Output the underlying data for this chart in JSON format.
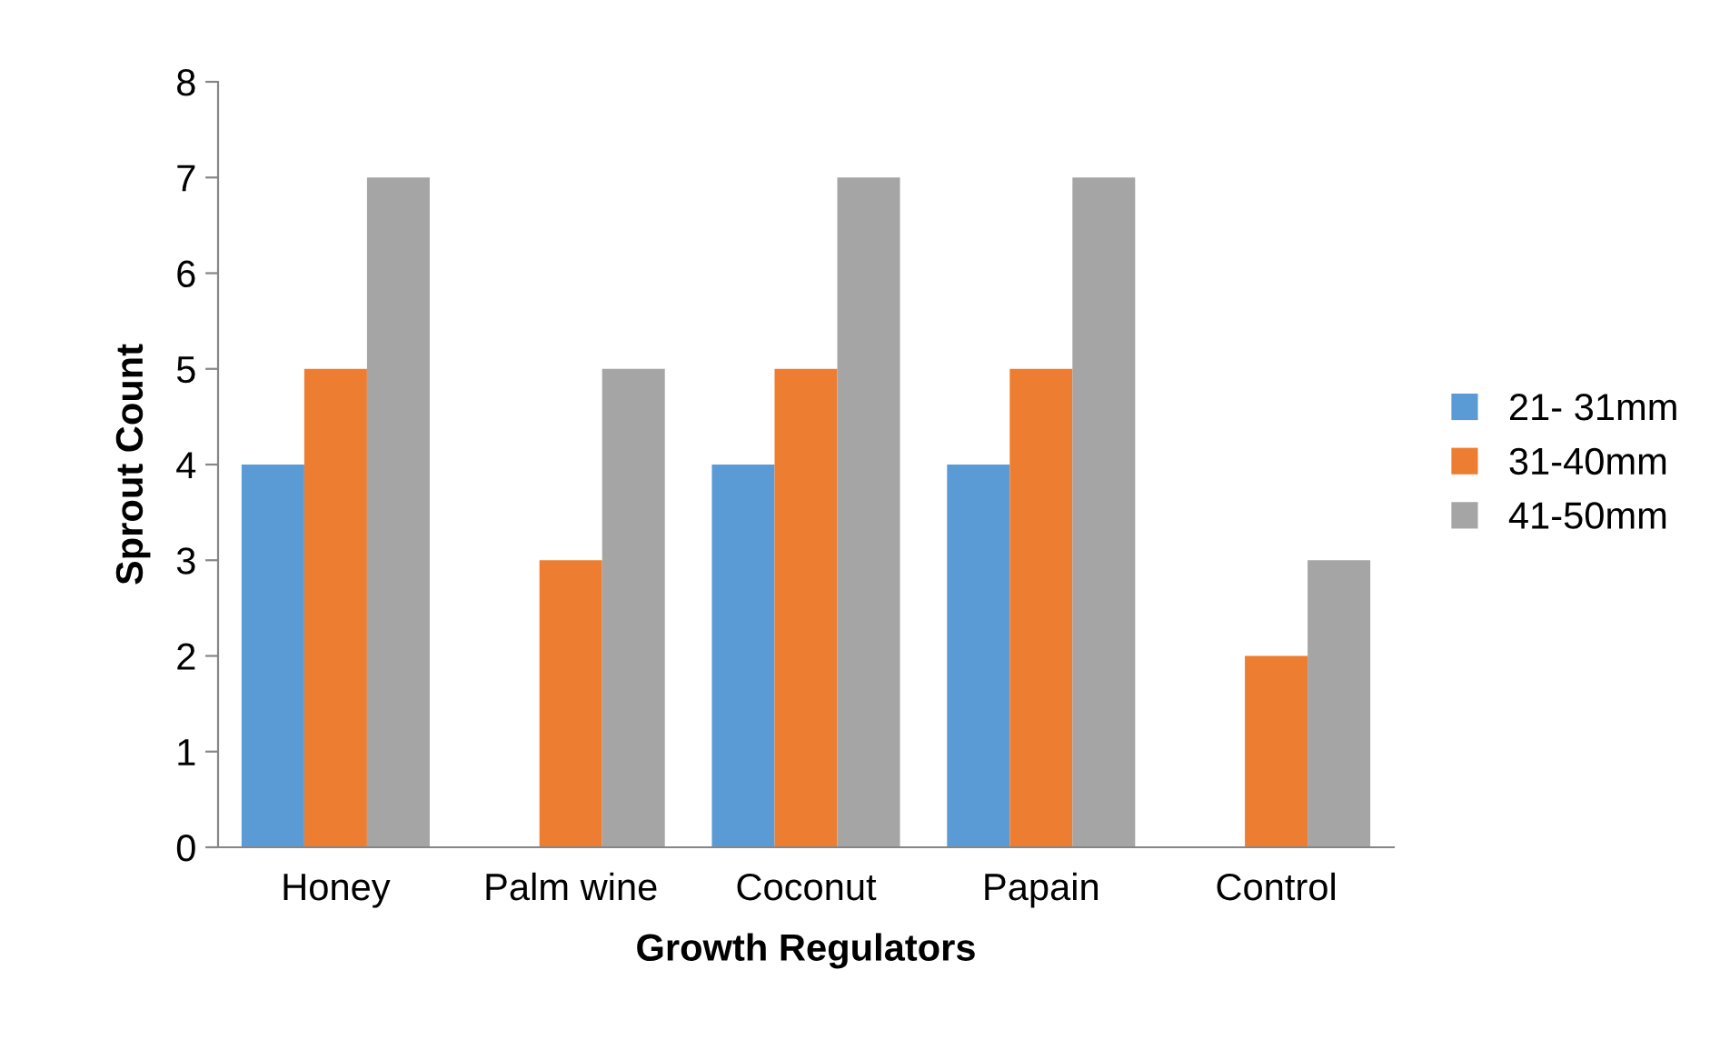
{
  "chart_data": {
    "type": "bar",
    "xlabel": "Growth Regulators",
    "ylabel": "Sprout Count",
    "categories": [
      "Honey",
      "Palm wine",
      "Coconut",
      "Papain",
      "Control"
    ],
    "series": [
      {
        "name": "21- 31mm",
        "color": "#5b9bd5",
        "values": [
          4,
          0,
          4,
          4,
          0
        ]
      },
      {
        "name": "31-40mm",
        "color": "#ed7d31",
        "values": [
          5,
          3,
          5,
          5,
          2
        ]
      },
      {
        "name": "41-50mm",
        "color": "#a5a5a5",
        "values": [
          7,
          5,
          7,
          7,
          3
        ]
      }
    ],
    "ylim": [
      0,
      8
    ],
    "yticks": [
      0,
      1,
      2,
      3,
      4,
      5,
      6,
      7,
      8
    ],
    "grid": false,
    "legend": "right"
  }
}
